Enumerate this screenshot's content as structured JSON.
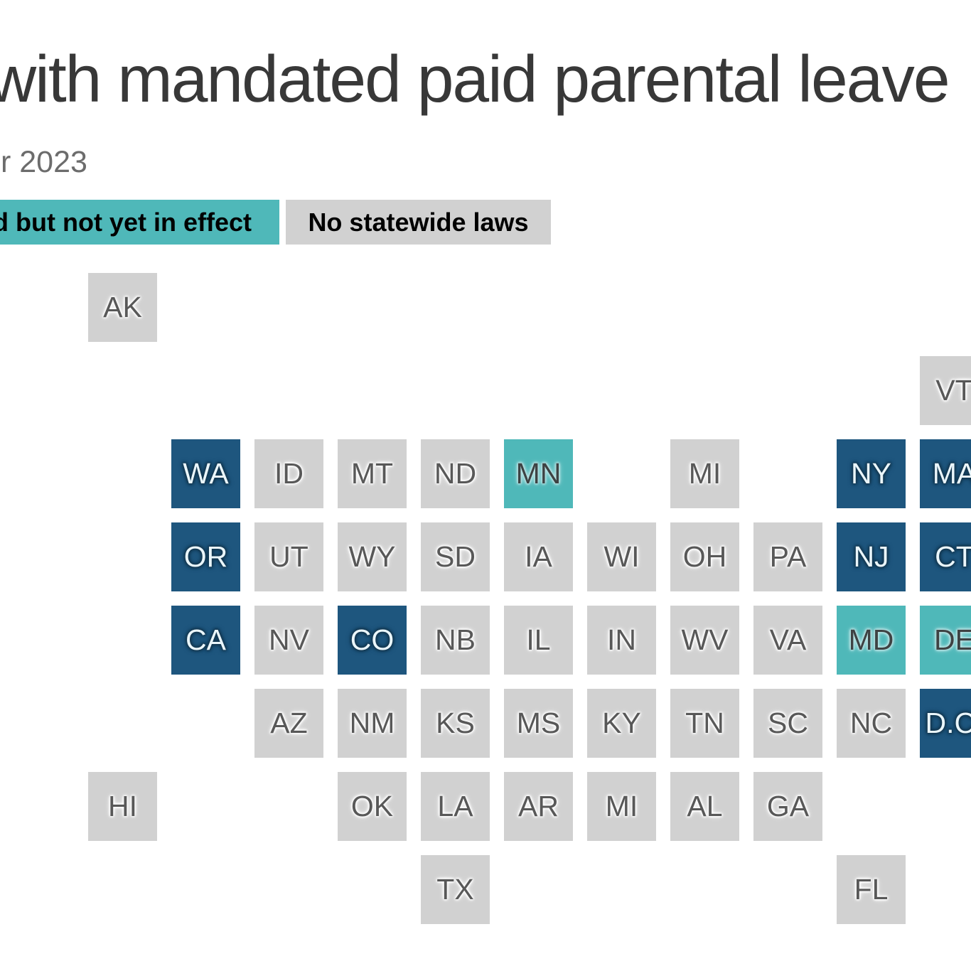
{
  "header": {
    "title": "with mandated paid parental leave",
    "subtitle": "r 2023"
  },
  "legend": {
    "items": [
      {
        "id": "passed",
        "label": "d but not yet in effect",
        "color": "#4FB8B9"
      },
      {
        "id": "none",
        "label": "No statewide laws",
        "color": "#D1D1D1"
      }
    ]
  },
  "colors": {
    "in_effect_tile": "#1E567E",
    "passed_tile": "#4FB8B9",
    "no_law_tile": "#D1D1D1",
    "in_effect_label": "#EAF6FB",
    "passed_label": "#3E4243",
    "no_law_label": "#585858",
    "title": "#383838",
    "subtitle": "#6C6C6C",
    "background": "#FFFFFF"
  },
  "chart_data": {
    "type": "tile-grid-map",
    "title_visible": "with mandated paid parental leave",
    "subtitle_visible": "r 2023",
    "legend_entries": [
      {
        "label": "d but not yet in effect",
        "status": "passed",
        "color": "#4FB8B9"
      },
      {
        "label": "No statewide laws",
        "status": "none",
        "color": "#D1D1D1"
      }
    ],
    "status_colors": {
      "in_effect": "#1E567E",
      "passed": "#4FB8B9",
      "none": "#D1D1D1"
    },
    "states": [
      {
        "label": "AK",
        "col": 1,
        "row": 1,
        "status": "none"
      },
      {
        "label": "VT",
        "col": 11,
        "row": 2,
        "status": "none"
      },
      {
        "label": "WA",
        "col": 2,
        "row": 3,
        "status": "in_effect"
      },
      {
        "label": "ID",
        "col": 3,
        "row": 3,
        "status": "none"
      },
      {
        "label": "MT",
        "col": 4,
        "row": 3,
        "status": "none"
      },
      {
        "label": "ND",
        "col": 5,
        "row": 3,
        "status": "none"
      },
      {
        "label": "MN",
        "col": 6,
        "row": 3,
        "status": "passed"
      },
      {
        "label": "MI",
        "col": 8,
        "row": 3,
        "status": "none"
      },
      {
        "label": "NY",
        "col": 10,
        "row": 3,
        "status": "in_effect"
      },
      {
        "label": "MA",
        "col": 11,
        "row": 3,
        "status": "in_effect"
      },
      {
        "label": "OR",
        "col": 2,
        "row": 4,
        "status": "in_effect"
      },
      {
        "label": "UT",
        "col": 3,
        "row": 4,
        "status": "none"
      },
      {
        "label": "WY",
        "col": 4,
        "row": 4,
        "status": "none"
      },
      {
        "label": "SD",
        "col": 5,
        "row": 4,
        "status": "none"
      },
      {
        "label": "IA",
        "col": 6,
        "row": 4,
        "status": "none"
      },
      {
        "label": "WI",
        "col": 7,
        "row": 4,
        "status": "none"
      },
      {
        "label": "OH",
        "col": 8,
        "row": 4,
        "status": "none"
      },
      {
        "label": "PA",
        "col": 9,
        "row": 4,
        "status": "none"
      },
      {
        "label": "NJ",
        "col": 10,
        "row": 4,
        "status": "in_effect"
      },
      {
        "label": "CT",
        "col": 11,
        "row": 4,
        "status": "in_effect"
      },
      {
        "label": "CA",
        "col": 2,
        "row": 5,
        "status": "in_effect"
      },
      {
        "label": "NV",
        "col": 3,
        "row": 5,
        "status": "none"
      },
      {
        "label": "CO",
        "col": 4,
        "row": 5,
        "status": "in_effect"
      },
      {
        "label": "NB",
        "col": 5,
        "row": 5,
        "status": "none"
      },
      {
        "label": "IL",
        "col": 6,
        "row": 5,
        "status": "none"
      },
      {
        "label": "IN",
        "col": 7,
        "row": 5,
        "status": "none"
      },
      {
        "label": "WV",
        "col": 8,
        "row": 5,
        "status": "none"
      },
      {
        "label": "VA",
        "col": 9,
        "row": 5,
        "status": "none"
      },
      {
        "label": "MD",
        "col": 10,
        "row": 5,
        "status": "passed"
      },
      {
        "label": "DE",
        "col": 11,
        "row": 5,
        "status": "passed"
      },
      {
        "label": "AZ",
        "col": 3,
        "row": 6,
        "status": "none"
      },
      {
        "label": "NM",
        "col": 4,
        "row": 6,
        "status": "none"
      },
      {
        "label": "KS",
        "col": 5,
        "row": 6,
        "status": "none"
      },
      {
        "label": "MS",
        "col": 6,
        "row": 6,
        "status": "none"
      },
      {
        "label": "KY",
        "col": 7,
        "row": 6,
        "status": "none"
      },
      {
        "label": "TN",
        "col": 8,
        "row": 6,
        "status": "none"
      },
      {
        "label": "SC",
        "col": 9,
        "row": 6,
        "status": "none"
      },
      {
        "label": "NC",
        "col": 10,
        "row": 6,
        "status": "none"
      },
      {
        "label": "D.C.",
        "col": 11,
        "row": 6,
        "status": "in_effect"
      },
      {
        "label": "HI",
        "col": 1,
        "row": 7,
        "status": "none"
      },
      {
        "label": "OK",
        "col": 4,
        "row": 7,
        "status": "none"
      },
      {
        "label": "LA",
        "col": 5,
        "row": 7,
        "status": "none"
      },
      {
        "label": "AR",
        "col": 6,
        "row": 7,
        "status": "none"
      },
      {
        "label": "MI",
        "col": 7,
        "row": 7,
        "status": "none"
      },
      {
        "label": "AL",
        "col": 8,
        "row": 7,
        "status": "none"
      },
      {
        "label": "GA",
        "col": 9,
        "row": 7,
        "status": "none"
      },
      {
        "label": "TX",
        "col": 5,
        "row": 8,
        "status": "none"
      },
      {
        "label": "FL",
        "col": 10,
        "row": 8,
        "status": "none"
      }
    ]
  }
}
